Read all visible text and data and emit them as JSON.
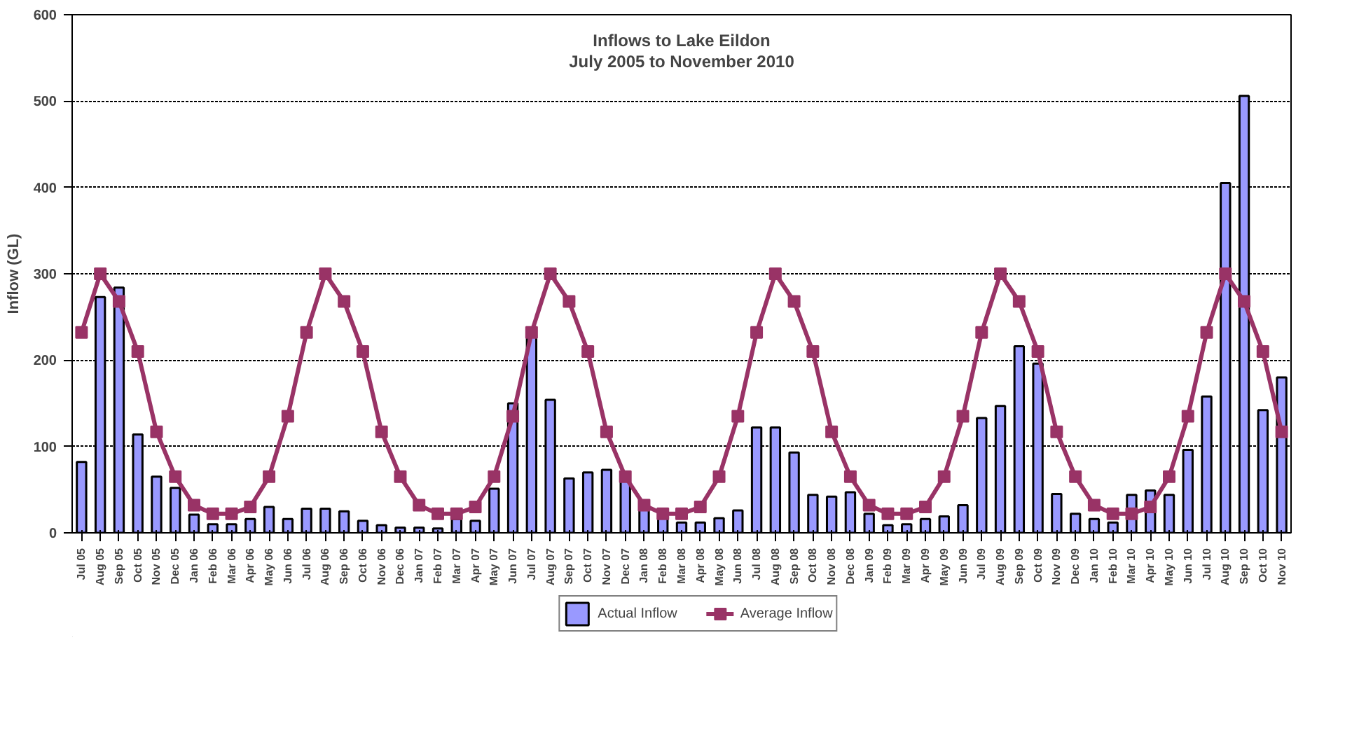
{
  "chart_data": {
    "type": "bar",
    "title": "Inflows to Lake Eildon",
    "subtitle": "July 2005 to November 2010",
    "ylabel": "Inflow (GL)",
    "categories": [
      "Jul 05",
      "Aug 05",
      "Sep 05",
      "Oct 05",
      "Nov 05",
      "Dec 05",
      "Jan 06",
      "Feb 06",
      "Mar 06",
      "Apr 06",
      "May 06",
      "Jun 06",
      "Jul 06",
      "Aug 06",
      "Sep 06",
      "Oct 06",
      "Nov 06",
      "Dec 06",
      "Jan 07",
      "Feb 07",
      "Mar 07",
      "Apr 07",
      "May 07",
      "Jun 07",
      "Jul 07",
      "Aug 07",
      "Sep 07",
      "Oct 07",
      "Nov 07",
      "Dec 07",
      "Jan 08",
      "Feb 08",
      "Mar 08",
      "Apr 08",
      "May 08",
      "Jun 08",
      "Jul 08",
      "Aug 08",
      "Sep 08",
      "Oct 08",
      "Nov 08",
      "Dec 08",
      "Jan 09",
      "Feb 09",
      "Mar 09",
      "Apr 09",
      "May 09",
      "Jun 09",
      "Jul 09",
      "Aug 09",
      "Sep 09",
      "Oct 09",
      "Nov 09",
      "Dec 09",
      "Jan 10",
      "Feb 10",
      "Mar 10",
      "Apr 10",
      "May 10",
      "Jun 10",
      "Jul 10",
      "Aug 10",
      "Sep 10",
      "Oct 10",
      "Nov 10"
    ],
    "series": [
      {
        "name": "Actual Inflow",
        "type": "bar",
        "color": "#9999ff",
        "values": [
          82,
          273,
          284,
          114,
          65,
          52,
          21,
          10,
          10,
          16,
          30,
          16,
          28,
          28,
          25,
          14,
          9,
          6,
          6,
          5,
          16,
          14,
          51,
          150,
          230,
          154,
          63,
          70,
          73,
          61,
          29,
          17,
          12,
          12,
          17,
          26,
          122,
          122,
          93,
          44,
          42,
          47,
          22,
          9,
          10,
          16,
          19,
          32,
          133,
          147,
          216,
          196,
          45,
          22,
          16,
          12,
          44,
          49,
          44,
          96,
          158,
          405,
          506,
          142,
          180
        ]
      },
      {
        "name": "Average Inflow",
        "type": "line",
        "color": "#993366",
        "marker": "square",
        "values": [
          232,
          300,
          268,
          210,
          117,
          65,
          32,
          22,
          22,
          30,
          65,
          135,
          232,
          300,
          268,
          210,
          117,
          65,
          32,
          22,
          22,
          30,
          65,
          135,
          232,
          300,
          268,
          210,
          117,
          65,
          32,
          22,
          22,
          30,
          65,
          135,
          232,
          300,
          268,
          210,
          117,
          65,
          32,
          22,
          22,
          30,
          65,
          135,
          232,
          300,
          268,
          210,
          117,
          65,
          32,
          22,
          22,
          30,
          65,
          135,
          232,
          300,
          268,
          210,
          117
        ]
      }
    ],
    "ylim": [
      0,
      600
    ],
    "yticks": [
      0,
      100,
      200,
      300,
      400,
      500,
      600
    ],
    "grid": "y",
    "legend": "bottom"
  }
}
